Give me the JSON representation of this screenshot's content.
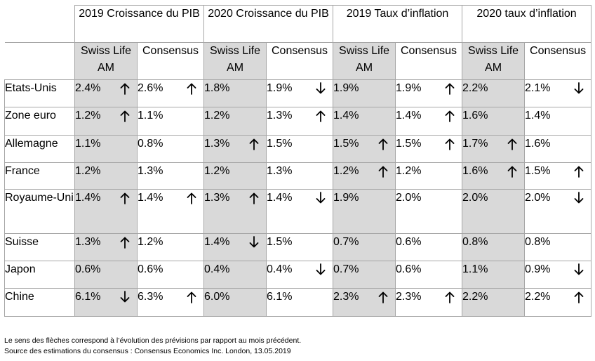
{
  "header": {
    "groups": [
      "2019 Croissance du PIB",
      "2020 Croissance du PIB",
      "2019 Taux d’inflation",
      "2020 taux d’inflation"
    ],
    "subheaders": [
      "Swiss Life AM",
      "Consensus",
      "Swiss Life AM",
      "Consensus",
      "Swiss Life AM",
      "Consensus",
      "Swiss Life AM",
      "Consensus"
    ]
  },
  "rows": [
    {
      "country": "Etats-Unis",
      "values": [
        "2.4%",
        "2.6%",
        "1.8%",
        "1.9%",
        "1.9%",
        "1.9%",
        "2.2%",
        "2.1%"
      ],
      "arrows": [
        "up",
        "up",
        "",
        "down",
        "",
        "up",
        "",
        "down"
      ]
    },
    {
      "country": "Zone euro",
      "values": [
        "1.2%",
        "1.1%",
        "1.2%",
        "1.3%",
        "1.4%",
        "1.4%",
        "1.6%",
        "1.4%"
      ],
      "arrows": [
        "up",
        "",
        "",
        "up",
        "",
        "up",
        "",
        ""
      ]
    },
    {
      "country": "Allemagne",
      "values": [
        "1.1%",
        "0.8%",
        "1.3%",
        "1.5%",
        "1.5%",
        "1.5%",
        "1.7%",
        "1.6%"
      ],
      "arrows": [
        "",
        "",
        "up",
        "",
        "up",
        "up",
        "up",
        ""
      ]
    },
    {
      "country": "France",
      "values": [
        "1.2%",
        "1.3%",
        "1.2%",
        "1.3%",
        "1.2%",
        "1.2%",
        "1.6%",
        "1.5%"
      ],
      "arrows": [
        "",
        "",
        "",
        "",
        "up",
        "",
        "up",
        "up"
      ]
    },
    {
      "country": "Royaume-Uni",
      "values": [
        "1.4%",
        "1.4%",
        "1.3%",
        "1.4%",
        "1.9%",
        "2.0%",
        "2.0%",
        "2.0%"
      ],
      "arrows": [
        "up",
        "up",
        "up",
        "down",
        "",
        "",
        "",
        "down"
      ]
    },
    {
      "country": "Suisse",
      "values": [
        "1.3%",
        "1.2%",
        "1.4%",
        "1.5%",
        "0.7%",
        "0.6%",
        "0.8%",
        "0.8%"
      ],
      "arrows": [
        "up",
        "",
        "down",
        "",
        "",
        "",
        "",
        ""
      ]
    },
    {
      "country": "Japon",
      "values": [
        "0.6%",
        "0.6%",
        "0.4%",
        "0.4%",
        "0.7%",
        "0.6%",
        "1.1%",
        "0.9%"
      ],
      "arrows": [
        "",
        "",
        "",
        "down",
        "",
        "",
        "",
        "down"
      ]
    },
    {
      "country": "Chine",
      "values": [
        "6.1%",
        "6.3%",
        "6.0%",
        "6.1%",
        "2.3%",
        "2.3%",
        "2.2%",
        "2.2%"
      ],
      "arrows": [
        "down",
        "up",
        "",
        "",
        "up",
        "up",
        "",
        "up"
      ]
    }
  ],
  "notes": {
    "line1": "Le sens des flèches correspond à l’évolution des prévisions par rapport au mois précédent.",
    "line2": "Source des estimations du consensus : Consensus Economics Inc. London, 13.05.2019"
  },
  "colors": {
    "shade": "#d9d9d9",
    "border": "#a6a6a6"
  },
  "icons": {
    "up": "arrow-up-icon",
    "down": "arrow-down-icon"
  }
}
